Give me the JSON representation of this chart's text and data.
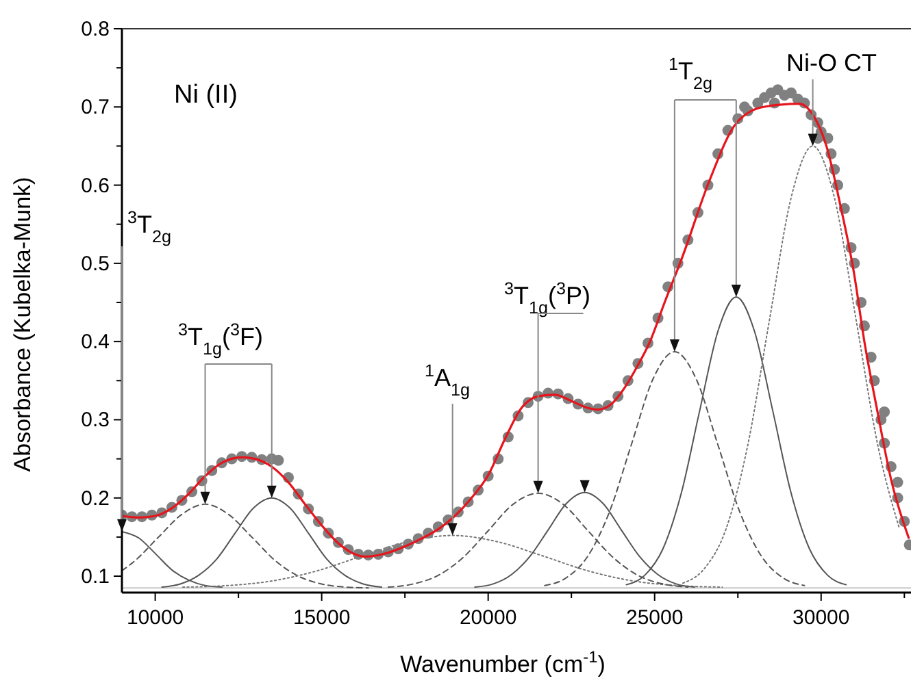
{
  "chart_data": {
    "type": "line",
    "xlabel": "Wavenumber (cm$^{-1}$)",
    "ylabel": "Absorbance (Kubelka-Munk)",
    "xlim": [
      9000,
      32700
    ],
    "ylim": [
      0.079,
      0.8
    ],
    "xticks": [
      10000,
      {
        "value": 12500,
        "label": null
      },
      15000,
      {
        "value": 17500,
        "label": null
      },
      20000,
      {
        "value": 22500,
        "label": null
      },
      25000,
      {
        "value": 27500,
        "label": null
      },
      30000,
      {
        "value": 32500,
        "label": null
      }
    ],
    "yticks": [
      0.1,
      {
        "value": 0.15,
        "label": null
      },
      0.2,
      {
        "value": 0.25,
        "label": null
      },
      0.3,
      {
        "value": 0.35,
        "label": null
      },
      0.4,
      {
        "value": 0.45,
        "label": null
      },
      0.5,
      {
        "value": 0.55,
        "label": null
      },
      0.6,
      {
        "value": 0.65,
        "label": null
      },
      0.7,
      {
        "value": 0.75,
        "label": null
      },
      0.8
    ],
    "annotations": [
      "Ni (II)",
      {
        "text": "$^{3}$T$_{2g}$",
        "x": 9000,
        "y": 0.157
      },
      {
        "text": "$^{3}$T$_{1g}$($^{3}$F)",
        "x": 11500,
        "y": 0.192
      },
      {
        "text": "$^{1}$A$_{1g}$",
        "x": 18930,
        "y": 0.152
      },
      {
        "text": "$^{3}$T$_{1g}$($^{3}$P)",
        "x": 21500,
        "y": 0.206
      },
      {
        "text": "$^{1}$T$_{2g}$",
        "x": 25600,
        "y": 0.387
      },
      {
        "text": "Ni-O CT",
        "x": 29750,
        "y": 0.65
      }
    ],
    "series": [
      {
        "type": "scatter",
        "marker": "circle",
        "color": "#808080",
        "x": [
          9000,
          9300,
          9600,
          9900,
          10200,
          10500,
          10800,
          11100,
          11400,
          11700,
          12000,
          12300,
          12600,
          12900,
          13200,
          13500,
          13700,
          14000,
          14300,
          14600,
          14900,
          15200,
          15500,
          15800,
          16100,
          16400,
          16700,
          17000,
          17300,
          17600,
          17900,
          18200,
          18500,
          18800,
          19100,
          19400,
          19700,
          20000,
          20300,
          20600,
          20900,
          21200,
          21500,
          21800,
          22100,
          22400,
          22700,
          23000,
          23300,
          23600,
          23900,
          24200,
          24500,
          24800,
          25100,
          25400,
          25700,
          26000,
          26300,
          26600,
          26900,
          27200,
          27500,
          27700,
          27800,
          28100,
          28300,
          28500,
          28600,
          28700,
          28900,
          29100,
          29300,
          29500,
          29700,
          29900,
          29900,
          30000,
          30200,
          30300,
          30400,
          30500,
          30700,
          30900,
          31000,
          31200,
          31300,
          31500,
          31600,
          31800,
          31900,
          31900,
          32100,
          32300,
          32300,
          32500,
          32650
        ],
        "values": [
          0.178,
          0.176,
          0.176,
          0.178,
          0.181,
          0.188,
          0.197,
          0.208,
          0.222,
          0.235,
          0.245,
          0.25,
          0.253,
          0.252,
          0.249,
          0.25,
          0.248,
          0.226,
          0.205,
          0.186,
          0.17,
          0.155,
          0.143,
          0.134,
          0.128,
          0.127,
          0.128,
          0.131,
          0.135,
          0.141,
          0.148,
          0.155,
          0.163,
          0.172,
          0.182,
          0.195,
          0.21,
          0.228,
          0.25,
          0.278,
          0.305,
          0.322,
          0.33,
          0.334,
          0.333,
          0.327,
          0.32,
          0.315,
          0.314,
          0.318,
          0.33,
          0.35,
          0.372,
          0.398,
          0.43,
          0.47,
          0.5,
          0.53,
          0.565,
          0.6,
          0.64,
          0.67,
          0.685,
          0.7,
          0.695,
          0.705,
          0.712,
          0.718,
          0.705,
          0.722,
          0.715,
          0.718,
          0.71,
          0.705,
          0.69,
          0.68,
          0.66,
          0.668,
          0.66,
          0.64,
          0.62,
          0.6,
          0.57,
          0.52,
          0.5,
          0.45,
          0.42,
          0.38,
          0.35,
          0.3,
          0.27,
          0.31,
          0.24,
          0.2,
          0.22,
          0.17,
          0.14
        ]
      },
      {
        "marker": "none",
        "line_style": "solid",
        "color": "#e8141c",
        "x": [
          9000,
          9500,
          10000,
          10500,
          11000,
          11500,
          12000,
          12600,
          13000,
          13500,
          14000,
          14500,
          15000,
          15500,
          16000,
          16300,
          17000,
          17500,
          18000,
          18500,
          19000,
          19500,
          20000,
          20500,
          21000,
          21500,
          22000,
          22500,
          23000,
          23300,
          23700,
          24000,
          24500,
          24850,
          25300,
          25840,
          26630,
          27450,
          28270,
          29340,
          29750,
          30160,
          30580,
          30990,
          31300,
          31690,
          32100,
          32630
        ],
        "values": [
          0.177,
          0.175,
          0.177,
          0.187,
          0.205,
          0.228,
          0.245,
          0.252,
          0.25,
          0.24,
          0.22,
          0.192,
          0.165,
          0.142,
          0.128,
          0.125,
          0.13,
          0.138,
          0.148,
          0.16,
          0.177,
          0.2,
          0.229,
          0.275,
          0.315,
          0.33,
          0.332,
          0.324,
          0.315,
          0.313,
          0.32,
          0.335,
          0.37,
          0.399,
          0.45,
          0.509,
          0.604,
          0.679,
          0.7,
          0.704,
          0.69,
          0.65,
          0.574,
          0.487,
          0.4,
          0.311,
          0.224,
          0.149
        ]
      },
      {
        "marker": "none",
        "line_style": "solid",
        "color": "#c8c8c8",
        "x": [
          9000,
          32700
        ],
        "values": [
          0.085,
          0.085
        ]
      },
      {
        "marker": "none",
        "line_style": "solid",
        "color": "#555555",
        "x": [
          9000,
          9500,
          10000,
          10500,
          11000,
          11500,
          12000
        ],
        "values": [
          0.157,
          0.149,
          0.129,
          0.108,
          0.095,
          0.088,
          0.086
        ]
      },
      {
        "marker": "none",
        "line_style": "dashed",
        "color": "#555555",
        "x": [
          9000,
          9400,
          10100,
          10800,
          11500,
          12200,
          12900,
          13600,
          14300,
          15000,
          15700,
          16400
        ],
        "values": [
          0.107,
          0.12,
          0.15,
          0.179,
          0.192,
          0.179,
          0.15,
          0.12,
          0.1,
          0.09,
          0.086,
          0.085
        ]
      },
      {
        "marker": "none",
        "line_style": "solid",
        "color": "#555555",
        "x": [
          10200,
          10750,
          11300,
          11850,
          12400,
          12950,
          13500,
          14050,
          14600,
          15150,
          15700,
          16250,
          16800
        ],
        "values": [
          0.086,
          0.09,
          0.101,
          0.122,
          0.155,
          0.187,
          0.2,
          0.187,
          0.155,
          0.122,
          0.101,
          0.09,
          0.086
        ]
      },
      {
        "marker": "none",
        "line_style": "dotted",
        "color": "#777777",
        "x": [
          10830,
          12180,
          13530,
          14880,
          16230,
          17580,
          18930,
          20280,
          21630,
          22980,
          24330,
          25680,
          27030
        ],
        "values": [
          0.086,
          0.088,
          0.094,
          0.107,
          0.126,
          0.144,
          0.152,
          0.144,
          0.126,
          0.107,
          0.094,
          0.088,
          0.086
        ]
      },
      {
        "marker": "none",
        "line_style": "dashed",
        "color": "#555555",
        "x": [
          17000,
          17750,
          18500,
          19250,
          20000,
          20750,
          21500,
          22250,
          23000,
          23750,
          24500,
          25250,
          26000
        ],
        "values": [
          0.086,
          0.09,
          0.101,
          0.124,
          0.158,
          0.192,
          0.206,
          0.192,
          0.158,
          0.124,
          0.101,
          0.09,
          0.086
        ]
      },
      {
        "marker": "none",
        "line_style": "solid",
        "color": "#555555",
        "x": [
          19600,
          20150,
          20700,
          21250,
          21800,
          22350,
          22900,
          23450,
          24000,
          24550,
          25100,
          25650,
          26200
        ],
        "values": [
          0.086,
          0.09,
          0.102,
          0.125,
          0.159,
          0.193,
          0.207,
          0.193,
          0.159,
          0.125,
          0.102,
          0.09,
          0.086
        ]
      },
      {
        "marker": "none",
        "line_style": "dashed",
        "color": "#555555",
        "x": [
          21700,
          22350,
          23000,
          23650,
          24300,
          24950,
          25600,
          26250,
          26900,
          27550,
          28200,
          28850,
          29500
        ],
        "values": [
          0.088,
          0.098,
          0.126,
          0.183,
          0.268,
          0.352,
          0.387,
          0.352,
          0.268,
          0.183,
          0.126,
          0.098,
          0.088
        ]
      },
      {
        "marker": "none",
        "line_style": "solid",
        "color": "#555555",
        "x": [
          24150,
          24700,
          25250,
          25800,
          26350,
          26900,
          27450,
          28000,
          28550,
          29100,
          29650,
          30200,
          30750
        ],
        "values": [
          0.089,
          0.101,
          0.135,
          0.206,
          0.311,
          0.413,
          0.457,
          0.413,
          0.311,
          0.206,
          0.135,
          0.101,
          0.089
        ]
      },
      {
        "marker": "none",
        "line_style": "dotted",
        "color": "#777777",
        "x": [
          25850,
          26500,
          27150,
          27800,
          28450,
          29100,
          29750,
          30400,
          31050,
          31700,
          32350
        ],
        "values": [
          0.091,
          0.11,
          0.161,
          0.268,
          0.428,
          0.584,
          0.65,
          0.584,
          0.428,
          0.268,
          0.161
        ]
      }
    ]
  }
}
